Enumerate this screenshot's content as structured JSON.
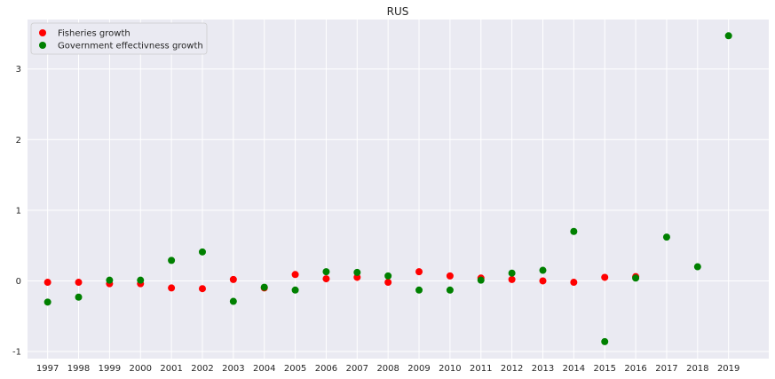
{
  "chart_data": {
    "type": "scatter",
    "title": "RUS",
    "xlabel": "",
    "ylabel": "",
    "grid": true,
    "legend_position": "top-left",
    "xlim": [
      1996.35,
      2020.3
    ],
    "ylim": [
      -1.1,
      3.7
    ],
    "y_ticks": [
      -1,
      0,
      1,
      2,
      3
    ],
    "x_ticks": [
      1997,
      1998,
      1999,
      2000,
      2001,
      2002,
      2003,
      2004,
      2005,
      2006,
      2007,
      2008,
      2009,
      2010,
      2011,
      2012,
      2013,
      2014,
      2015,
      2016,
      2017,
      2018,
      2019
    ],
    "series": [
      {
        "name": "Fisheries growth",
        "color": "#ff0000",
        "x": [
          1997,
          1998,
          1999,
          2000,
          2001,
          2002,
          2003,
          2004,
          2005,
          2006,
          2007,
          2008,
          2009,
          2010,
          2011,
          2012,
          2013,
          2014,
          2015,
          2016
        ],
        "y": [
          -0.02,
          -0.02,
          -0.04,
          -0.04,
          -0.1,
          -0.11,
          0.02,
          -0.1,
          0.09,
          0.03,
          0.05,
          -0.02,
          0.13,
          0.07,
          0.04,
          0.02,
          0.0,
          -0.02,
          0.05,
          0.06
        ]
      },
      {
        "name": "Government effectivness growth",
        "color": "#008000",
        "x": [
          1997,
          1998,
          1999,
          2000,
          2001,
          2002,
          2003,
          2004,
          2005,
          2006,
          2007,
          2008,
          2009,
          2010,
          2011,
          2012,
          2013,
          2014,
          2015,
          2016,
          2017,
          2018,
          2019
        ],
        "y": [
          -0.3,
          -0.23,
          0.01,
          0.01,
          0.29,
          0.41,
          -0.29,
          -0.09,
          -0.13,
          0.13,
          0.12,
          0.07,
          -0.13,
          -0.13,
          0.01,
          0.11,
          0.15,
          0.7,
          -0.86,
          0.04,
          0.62,
          0.2,
          3.47
        ]
      }
    ]
  }
}
